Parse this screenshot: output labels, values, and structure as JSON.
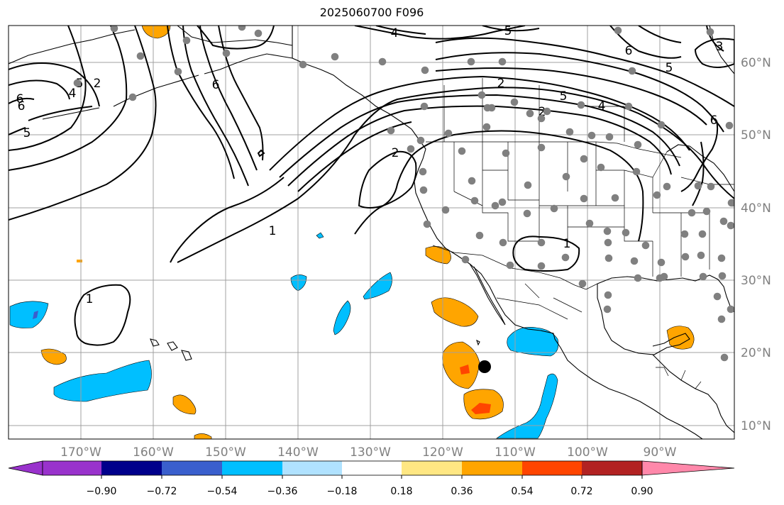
{
  "title": "2025060700 F096",
  "longitude_labels": [
    "170°W",
    "160°W",
    "150°W",
    "140°W",
    "130°W",
    "120°W",
    "110°W",
    "100°W",
    "90°W"
  ],
  "latitude_labels": [
    "60°N",
    "50°N",
    "40°N",
    "30°N",
    "20°N",
    "10°N"
  ],
  "colorbar": {
    "tick_labels": [
      "−0.90",
      "−0.72",
      "−0.54",
      "−0.36",
      "−0.18",
      "0.18",
      "0.36",
      "0.54",
      "0.72",
      "0.90"
    ],
    "colors": [
      "#9932cc",
      "#00008b",
      "#3a5fcd",
      "#00bfff",
      "#b0e2ff",
      "#ffffff",
      "#ffe783",
      "#ffa500",
      "#ff4500",
      "#b22222",
      "#ff88aa"
    ]
  },
  "contour_labels": [
    "6",
    "4",
    "2",
    "5",
    "4",
    "6",
    "5",
    "6",
    "2",
    "5",
    "1",
    "2",
    "1",
    "1",
    "3",
    "6",
    "5",
    "6",
    "2",
    "4",
    "5"
  ],
  "colors": {
    "contour": "#000000",
    "grid": "#a0a0a0",
    "station": "#808080",
    "storm": "#000000",
    "coast": "#000000"
  }
}
